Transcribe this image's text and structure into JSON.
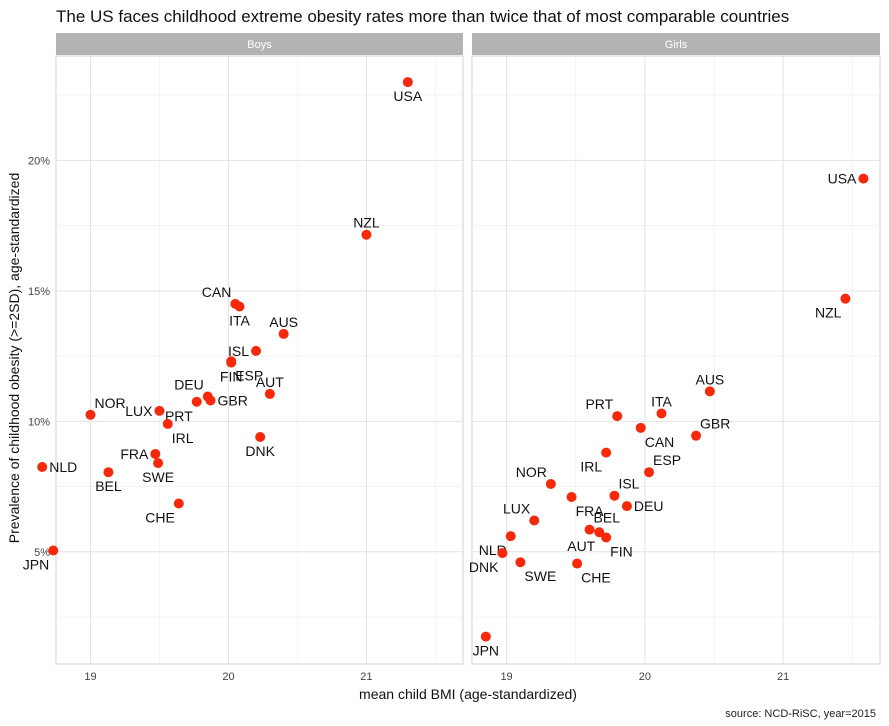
{
  "chart_data": {
    "type": "scatter",
    "title": "The US faces childhood extreme obesity rates more than twice that of most comparable countries",
    "xlabel": "mean child BMI (age-standardized)",
    "ylabel": "Prevalence of childhood obesity (>=2SD), age-standardized",
    "caption": "source: NCD-RiSC, year=2015",
    "xlim": [
      18.75,
      21.7
    ],
    "ylim": [
      0.7,
      24.0
    ],
    "x_ticks": [
      19,
      20,
      21
    ],
    "x_tick_labels": [
      "19",
      "20",
      "21"
    ],
    "y_ticks": [
      5,
      10,
      15,
      20
    ],
    "y_tick_labels": [
      "5%",
      "10%",
      "15%",
      "20%"
    ],
    "grid": true,
    "point_color": "#f8290b",
    "panels": [
      {
        "name": "Boys",
        "points": [
          {
            "label": "USA",
            "x": 21.3,
            "y": 23.0,
            "pos": "below"
          },
          {
            "label": "NZL",
            "x": 21.0,
            "y": 17.15,
            "pos": "above"
          },
          {
            "label": "CAN",
            "x": 20.05,
            "y": 14.5,
            "pos": "above-left"
          },
          {
            "label": "ITA",
            "x": 20.08,
            "y": 14.4,
            "pos": "below"
          },
          {
            "label": "AUS",
            "x": 20.4,
            "y": 13.35,
            "pos": "above"
          },
          {
            "label": "ISL",
            "x": 20.2,
            "y": 12.7,
            "pos": "left"
          },
          {
            "label": "ESP",
            "x": 20.02,
            "y": 12.3,
            "pos": "below-right"
          },
          {
            "label": "FIN",
            "x": 20.02,
            "y": 12.25,
            "pos": "below"
          },
          {
            "label": "AUT",
            "x": 20.3,
            "y": 11.05,
            "pos": "above"
          },
          {
            "label": "DEU",
            "x": 19.85,
            "y": 10.95,
            "pos": "above-left"
          },
          {
            "label": "GBR",
            "x": 19.87,
            "y": 10.8,
            "pos": "right"
          },
          {
            "label": "PRT",
            "x": 19.77,
            "y": 10.75,
            "pos": "below-left"
          },
          {
            "label": "LUX",
            "x": 19.5,
            "y": 10.4,
            "pos": "left"
          },
          {
            "label": "IRL",
            "x": 19.56,
            "y": 9.9,
            "pos": "below-right"
          },
          {
            "label": "NOR",
            "x": 19.0,
            "y": 10.25,
            "pos": "above-right"
          },
          {
            "label": "DNK",
            "x": 20.23,
            "y": 9.4,
            "pos": "below"
          },
          {
            "label": "FRA",
            "x": 19.47,
            "y": 8.75,
            "pos": "left"
          },
          {
            "label": "SWE",
            "x": 19.49,
            "y": 8.4,
            "pos": "below"
          },
          {
            "label": "NLD",
            "x": 18.65,
            "y": 8.25,
            "pos": "right"
          },
          {
            "label": "BEL",
            "x": 19.13,
            "y": 8.05,
            "pos": "below"
          },
          {
            "label": "CHE",
            "x": 19.64,
            "y": 6.85,
            "pos": "below-left"
          },
          {
            "label": "JPN",
            "x": 18.73,
            "y": 5.05,
            "pos": "below-left"
          }
        ]
      },
      {
        "name": "Girls",
        "points": [
          {
            "label": "USA",
            "x": 21.58,
            "y": 19.3,
            "pos": "left"
          },
          {
            "label": "NZL",
            "x": 21.45,
            "y": 14.7,
            "pos": "below-left"
          },
          {
            "label": "AUS",
            "x": 20.47,
            "y": 11.15,
            "pos": "above"
          },
          {
            "label": "PRT",
            "x": 19.8,
            "y": 10.2,
            "pos": "above-left"
          },
          {
            "label": "ITA",
            "x": 20.12,
            "y": 10.3,
            "pos": "above"
          },
          {
            "label": "CAN",
            "x": 19.97,
            "y": 9.75,
            "pos": "below-right"
          },
          {
            "label": "GBR",
            "x": 20.37,
            "y": 9.45,
            "pos": "above-right"
          },
          {
            "label": "IRL",
            "x": 19.72,
            "y": 8.8,
            "pos": "below-left"
          },
          {
            "label": "ESP",
            "x": 20.03,
            "y": 8.05,
            "pos": "above-right"
          },
          {
            "label": "NOR",
            "x": 19.32,
            "y": 7.6,
            "pos": "above-left"
          },
          {
            "label": "ISL",
            "x": 19.78,
            "y": 7.15,
            "pos": "above-right"
          },
          {
            "label": "FRA",
            "x": 19.47,
            "y": 7.1,
            "pos": "below-right"
          },
          {
            "label": "DEU",
            "x": 19.87,
            "y": 6.75,
            "pos": "right"
          },
          {
            "label": "LUX",
            "x": 19.2,
            "y": 6.2,
            "pos": "above-left"
          },
          {
            "label": "BEL",
            "x": 19.6,
            "y": 5.85,
            "pos": "above-right"
          },
          {
            "label": "AUT",
            "x": 19.67,
            "y": 5.75,
            "pos": "below-left"
          },
          {
            "label": "FIN",
            "x": 19.72,
            "y": 5.55,
            "pos": "below-right"
          },
          {
            "label": "NLD",
            "x": 19.03,
            "y": 5.6,
            "pos": "below-left"
          },
          {
            "label": "DNK",
            "x": 18.97,
            "y": 4.95,
            "pos": "below-left"
          },
          {
            "label": "SWE",
            "x": 19.1,
            "y": 4.6,
            "pos": "below-right"
          },
          {
            "label": "CHE",
            "x": 19.51,
            "y": 4.55,
            "pos": "below-right"
          },
          {
            "label": "JPN",
            "x": 18.85,
            "y": 1.75,
            "pos": "below"
          }
        ]
      }
    ]
  }
}
